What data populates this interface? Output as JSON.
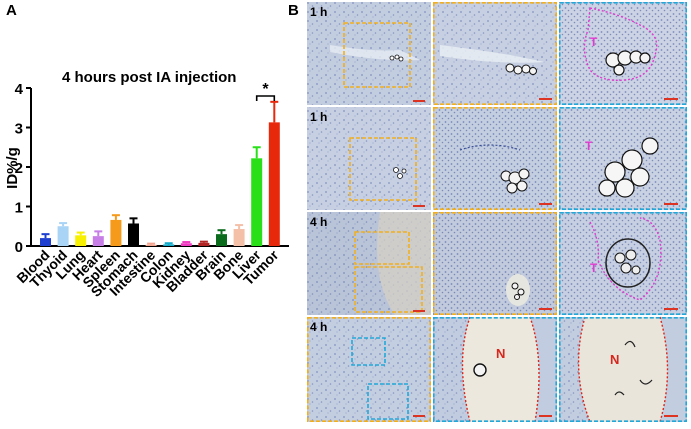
{
  "panel_a_label": "A",
  "panel_b_label": "B",
  "chart_data": {
    "type": "bar",
    "title": "4 hours post IA injection",
    "xlabel": "",
    "ylabel": "ID%/g",
    "ylim": [
      0,
      4
    ],
    "yticks": [
      "0",
      "1",
      "2",
      "3",
      "4"
    ],
    "categories": [
      "Blood",
      "Thyoid",
      "Lung",
      "Heart",
      "Spleen",
      "Stomach",
      "Intestine",
      "Colon",
      "Kidney",
      "Bladder",
      "Brain",
      "Bone",
      "Liver",
      "Tumor"
    ],
    "values": [
      0.2,
      0.5,
      0.27,
      0.25,
      0.66,
      0.57,
      0.03,
      0.04,
      0.07,
      0.08,
      0.3,
      0.43,
      2.22,
      3.13
    ],
    "errors": [
      0.1,
      0.08,
      0.07,
      0.12,
      0.12,
      0.13,
      0.03,
      0.03,
      0.03,
      0.03,
      0.1,
      0.1,
      0.28,
      0.52
    ],
    "colors": [
      "#1f3fd0",
      "#a9d4f5",
      "#f7f000",
      "#c77ee6",
      "#f59a1a",
      "#000000",
      "#f2a28c",
      "#12a8c8",
      "#f03ac2",
      "#b22424",
      "#0b6b1c",
      "#f5c0a8",
      "#29e018",
      "#e8280a"
    ],
    "significance": {
      "label": "*",
      "between": [
        "Liver",
        "Tumor"
      ]
    }
  },
  "micrographs": {
    "time_labels": [
      "1 h",
      "1 h",
      "4 h",
      "4 h"
    ],
    "annotations": {
      "tumor": "T",
      "necrosis": "N"
    }
  }
}
